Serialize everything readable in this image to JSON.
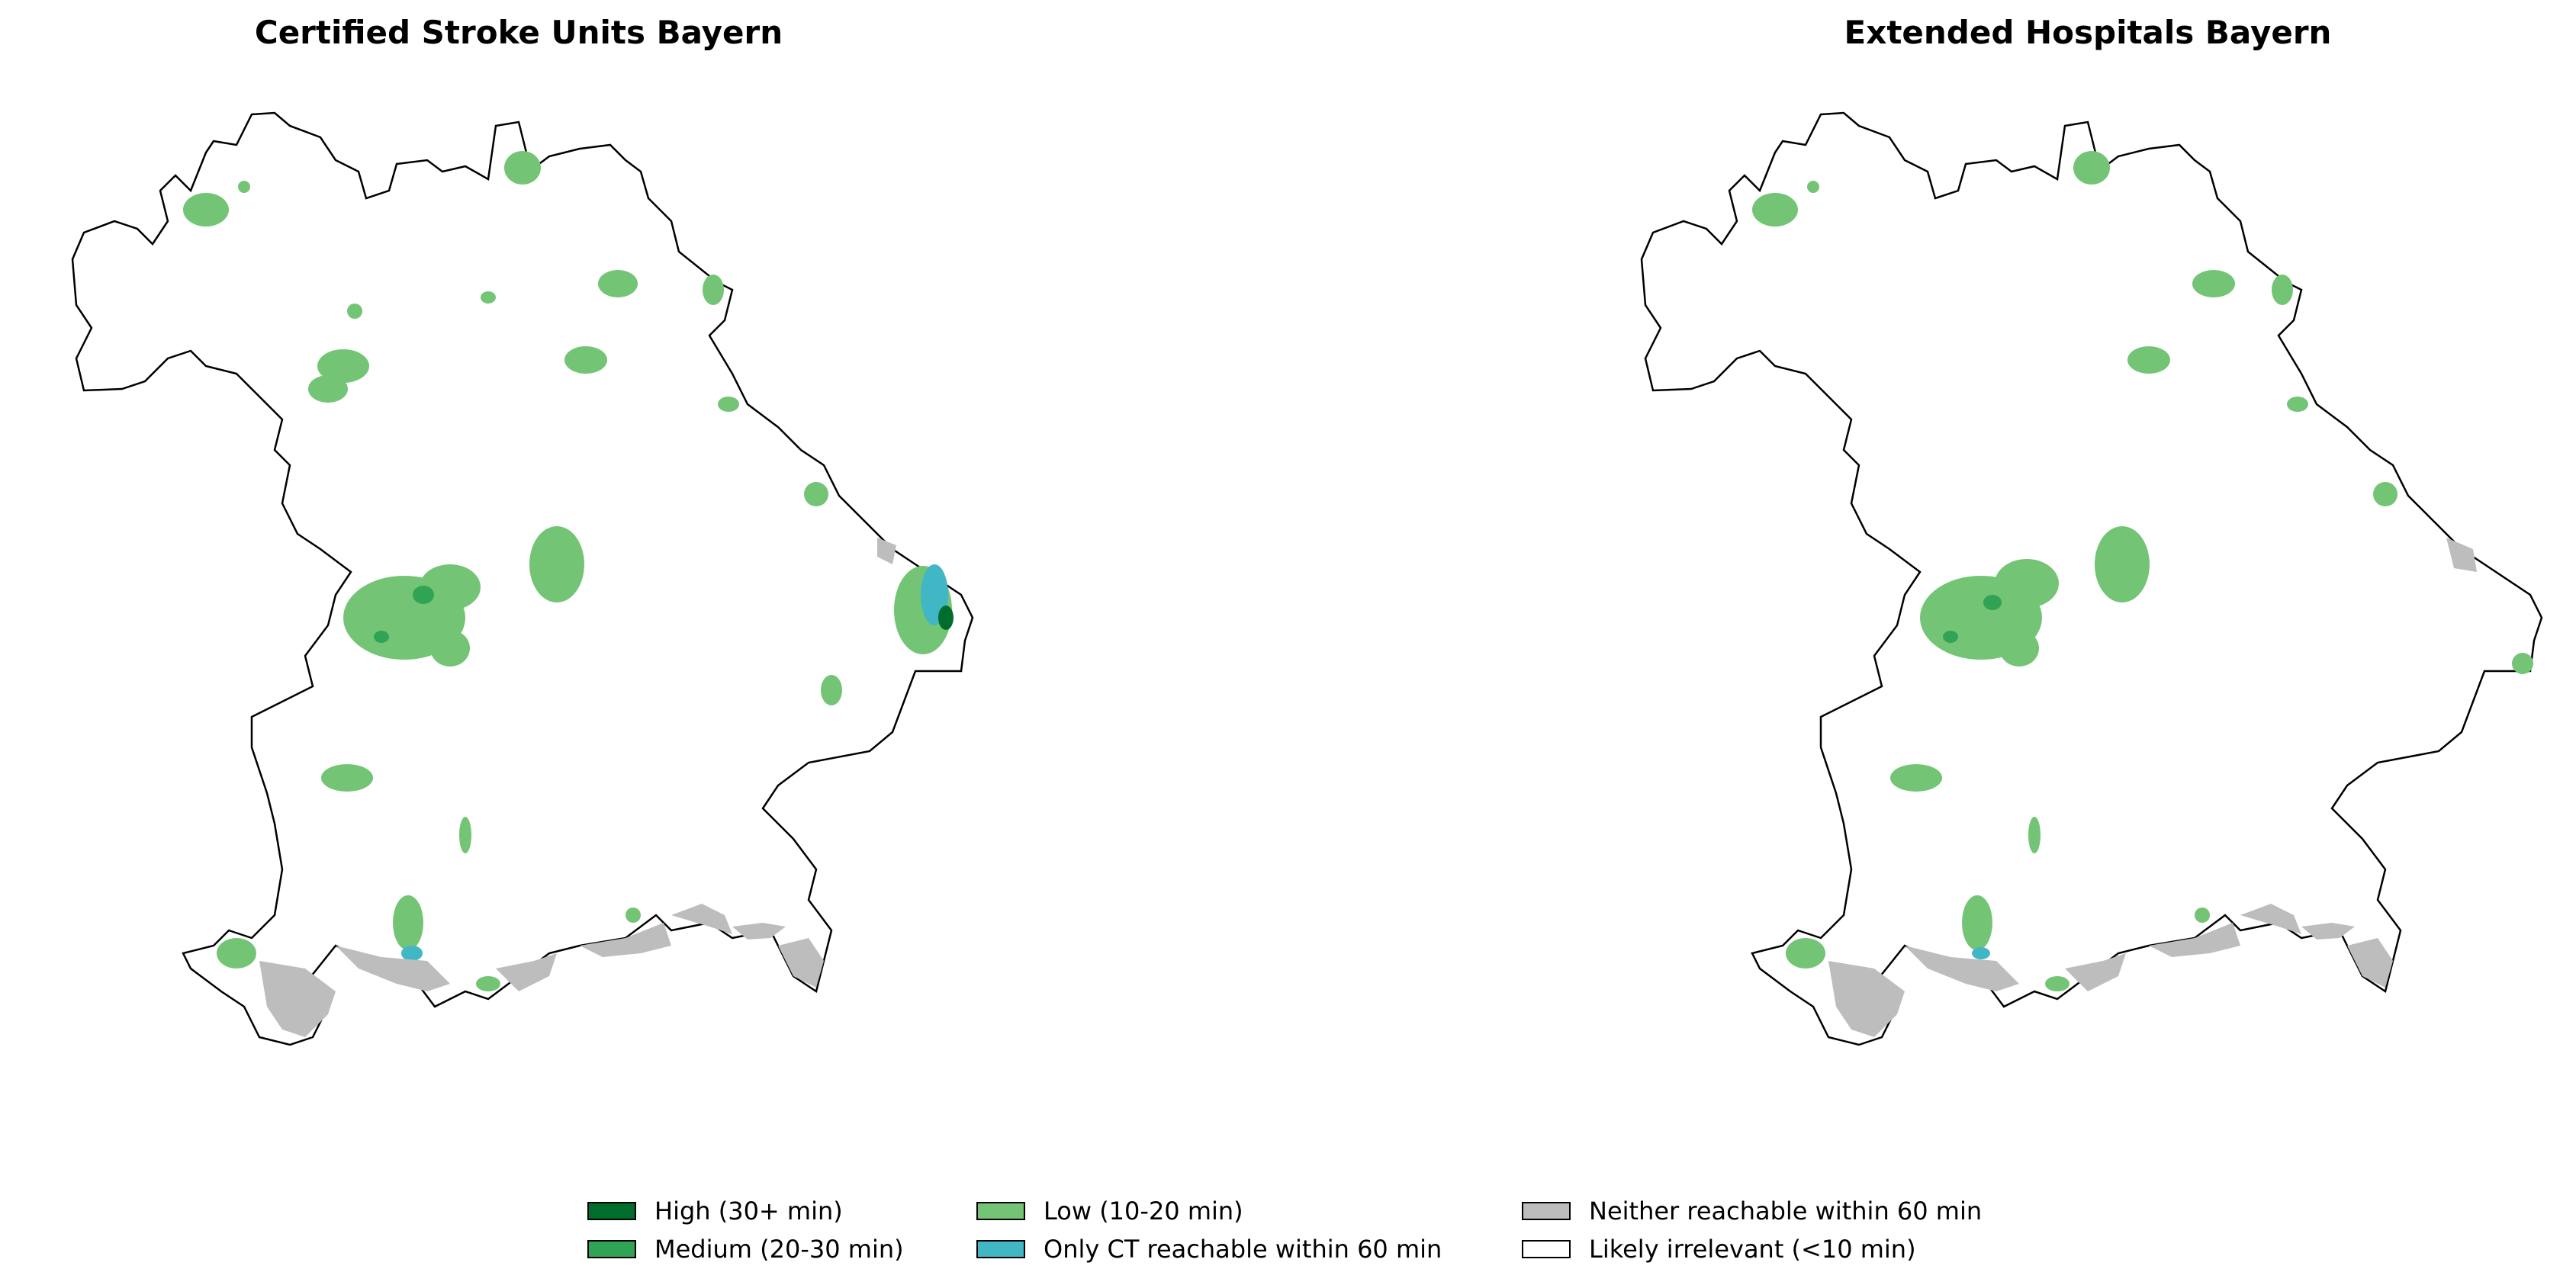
{
  "panels": [
    {
      "title": "Certified Stroke Units Bayern"
    },
    {
      "title": "Extended Hospitals Bayern"
    }
  ],
  "legend": [
    {
      "label": "High (30+ min)",
      "color": "#006d2c"
    },
    {
      "label": "Medium (20-30 min)",
      "color": "#31a354"
    },
    {
      "label": "Low (10-20 min)",
      "color": "#74c476"
    },
    {
      "label": "Only CT reachable within 60 min",
      "color": "#41b6c4"
    },
    {
      "label": "Neither reachable within 60 min",
      "color": "#bdbdbd"
    },
    {
      "label": "Likely irrelevant (<10 min)",
      "color": "#ffffff"
    }
  ],
  "colors": {
    "outline": "#000000",
    "low": "#74c476",
    "medium": "#31a354",
    "high": "#006d2c",
    "ct": "#41b6c4",
    "neither": "#bdbdbd"
  }
}
